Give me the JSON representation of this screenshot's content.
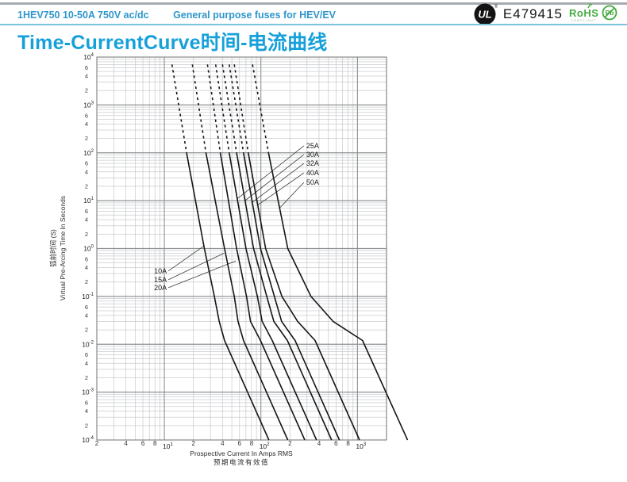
{
  "header": {
    "part_number": "1HEV750 10-50A 750V ac/dc",
    "subtitle": "General purpose fuses for HEV/EV",
    "ul_mark": "UL",
    "ul_reg": "®",
    "ul_file_number": "E479415",
    "rohs_label": "RoHS",
    "rohs_compliant": "COMPLIANT",
    "pb_label": "Pb"
  },
  "title": "Time-CurrentCurve时间-电流曲线",
  "chart_data": {
    "type": "line",
    "title": "Time-CurrentCurve 时间-电流曲线",
    "xlabel": "Prospective Current In Amps RMS",
    "xlabel_cn": "预期电流有效值",
    "ylabel": "Virtual Pre-Arcing Time In Seconds",
    "ylabel_cn": "弧前时间 (S)",
    "grid": true,
    "x_axis": {
      "scale": "log",
      "min": 2,
      "max": 2000,
      "unit": "A",
      "minor_labels": [
        2,
        4,
        6,
        8
      ],
      "decade_exponents": [
        1,
        2,
        3
      ]
    },
    "y_axis": {
      "scale": "log",
      "min": 0.0001,
      "max": 10000,
      "unit": "s",
      "minor_labels": [
        6,
        4,
        2
      ],
      "decade_exponents": [
        4,
        3,
        2,
        1,
        0,
        -1,
        -2,
        -3,
        -4
      ]
    },
    "dash_above_seconds": 100,
    "series": [
      {
        "name": "10A",
        "points": [
          [
            12,
            7000
          ],
          [
            17,
            100
          ],
          [
            26,
            1
          ],
          [
            33,
            0.1
          ],
          [
            37,
            0.03
          ],
          [
            42,
            0.012
          ],
          [
            121,
            0.0001
          ]
        ],
        "label": {
          "text": "10A",
          "side": "left",
          "at": [
            10.6,
            0.34
          ],
          "attach": [
            26,
            1.15
          ]
        }
      },
      {
        "name": "15A",
        "points": [
          [
            19.5,
            7000
          ],
          [
            27,
            100
          ],
          [
            42,
            1
          ],
          [
            53,
            0.1
          ],
          [
            58,
            0.03
          ],
          [
            66,
            0.012
          ],
          [
            190,
            0.0001
          ]
        ],
        "label": {
          "text": "15A",
          "side": "left",
          "at": [
            10.6,
            0.223
          ],
          "attach": [
            41.5,
            0.8
          ]
        }
      },
      {
        "name": "20A",
        "points": [
          [
            28,
            7000
          ],
          [
            38,
            100
          ],
          [
            56,
            1
          ],
          [
            71,
            0.1
          ],
          [
            78,
            0.03
          ],
          [
            99,
            0.012
          ],
          [
            285,
            0.0001
          ]
        ],
        "label": {
          "text": "20A",
          "side": "left",
          "at": [
            10.6,
            0.152
          ],
          "attach": [
            55,
            0.55
          ]
        }
      },
      {
        "name": "25A",
        "points": [
          [
            34,
            7000
          ],
          [
            47,
            100
          ],
          [
            70,
            1
          ],
          [
            92,
            0.1
          ],
          [
            103,
            0.03
          ],
          [
            131,
            0.012
          ],
          [
            377,
            0.0001
          ]
        ],
        "label": {
          "text": "25A",
          "side": "right",
          "at": [
            295,
            140
          ],
          "attach": [
            57,
            11
          ]
        }
      },
      {
        "name": "30A",
        "points": [
          [
            40,
            7000
          ],
          [
            56,
            100
          ],
          [
            84,
            1
          ],
          [
            115,
            0.1
          ],
          [
            136,
            0.03
          ],
          [
            188,
            0.012
          ],
          [
            540,
            0.0001
          ]
        ],
        "label": {
          "text": "30A",
          "side": "right",
          "at": [
            295,
            92
          ],
          "attach": [
            68.5,
            10
          ]
        }
      },
      {
        "name": "32A",
        "points": [
          [
            47,
            7000
          ],
          [
            66,
            100
          ],
          [
            99,
            1
          ],
          [
            138,
            0.1
          ],
          [
            164,
            0.03
          ],
          [
            226,
            0.012
          ],
          [
            650,
            0.0001
          ]
        ],
        "label": {
          "text": "32A",
          "side": "right",
          "at": [
            295,
            60
          ],
          "attach": [
            80,
            9
          ]
        }
      },
      {
        "name": "40A",
        "points": [
          [
            53,
            7000
          ],
          [
            74,
            100
          ],
          [
            112,
            1
          ],
          [
            165,
            0.1
          ],
          [
            240,
            0.03
          ],
          [
            364,
            0.012
          ],
          [
            1050,
            0.0001
          ]
        ],
        "label": {
          "text": "40A",
          "side": "right",
          "at": [
            295,
            38
          ],
          "attach": [
            92,
            8
          ]
        }
      },
      {
        "name": "50A",
        "points": [
          [
            82,
            7000
          ],
          [
            120,
            100
          ],
          [
            190,
            1
          ],
          [
            330,
            0.1
          ],
          [
            560,
            0.03
          ],
          [
            1130,
            0.012
          ],
          [
            3300,
            0.0001
          ]
        ],
        "label": {
          "text": "50A",
          "side": "right",
          "at": [
            295,
            24
          ],
          "attach": [
            156,
            7
          ]
        }
      }
    ]
  }
}
